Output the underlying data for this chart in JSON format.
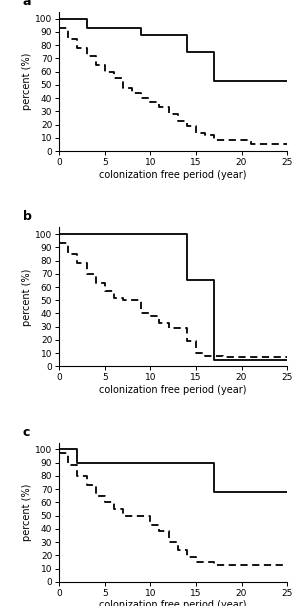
{
  "panels": [
    {
      "label": "a",
      "solid_x": [
        0,
        3,
        3,
        9,
        9,
        14,
        14,
        17,
        17,
        21,
        21,
        25
      ],
      "solid_y": [
        100,
        100,
        93,
        93,
        88,
        88,
        75,
        75,
        53,
        53,
        53,
        53
      ],
      "dashed_x": [
        0,
        1,
        1,
        2,
        2,
        3,
        3,
        4,
        4,
        5,
        5,
        6,
        6,
        7,
        7,
        8,
        8,
        9,
        9,
        10,
        10,
        11,
        11,
        12,
        12,
        13,
        13,
        14,
        14,
        15,
        15,
        16,
        16,
        17,
        17,
        19,
        19,
        21,
        21,
        22,
        22,
        25
      ],
      "dashed_y": [
        93,
        93,
        85,
        85,
        78,
        78,
        72,
        72,
        65,
        65,
        60,
        60,
        55,
        55,
        48,
        48,
        44,
        44,
        40,
        40,
        37,
        37,
        33,
        33,
        28,
        28,
        23,
        23,
        19,
        19,
        14,
        14,
        12,
        12,
        8,
        8,
        8,
        8,
        5,
        5,
        5,
        5
      ]
    },
    {
      "label": "b",
      "solid_x": [
        0,
        14,
        14,
        17,
        17,
        19,
        19,
        25
      ],
      "solid_y": [
        100,
        100,
        65,
        65,
        5,
        5,
        5,
        5
      ],
      "dashed_x": [
        0,
        1,
        1,
        2,
        2,
        3,
        3,
        4,
        4,
        5,
        5,
        6,
        6,
        7,
        7,
        9,
        9,
        10,
        10,
        11,
        11,
        12,
        12,
        13,
        13,
        14,
        14,
        15,
        15,
        16,
        16,
        17,
        17,
        18,
        18,
        19,
        19,
        22,
        22,
        25
      ],
      "dashed_y": [
        93,
        93,
        85,
        85,
        78,
        78,
        70,
        70,
        63,
        63,
        57,
        57,
        52,
        52,
        50,
        50,
        40,
        40,
        38,
        38,
        33,
        33,
        29,
        29,
        29,
        29,
        19,
        19,
        10,
        10,
        8,
        8,
        8,
        8,
        7,
        7,
        7,
        7,
        7,
        7
      ]
    },
    {
      "label": "c",
      "solid_x": [
        0,
        2,
        2,
        17,
        17,
        19,
        19,
        22,
        22,
        25
      ],
      "solid_y": [
        100,
        100,
        90,
        90,
        68,
        68,
        68,
        68,
        68,
        68
      ],
      "dashed_x": [
        0,
        1,
        1,
        2,
        2,
        3,
        3,
        4,
        4,
        5,
        5,
        6,
        6,
        7,
        7,
        8,
        8,
        10,
        10,
        11,
        11,
        12,
        12,
        13,
        13,
        14,
        14,
        15,
        15,
        16,
        16,
        17,
        17,
        19,
        19,
        21,
        21,
        25
      ],
      "dashed_y": [
        97,
        97,
        88,
        88,
        80,
        80,
        73,
        73,
        65,
        65,
        60,
        60,
        55,
        55,
        50,
        50,
        50,
        50,
        43,
        43,
        38,
        38,
        30,
        30,
        24,
        24,
        19,
        19,
        15,
        15,
        15,
        15,
        13,
        13,
        13,
        13,
        13,
        13
      ]
    }
  ],
  "xlim": [
    0,
    25
  ],
  "ylim": [
    0,
    105
  ],
  "xticks": [
    0,
    5,
    10,
    15,
    20,
    25
  ],
  "yticks": [
    0,
    10,
    20,
    30,
    40,
    50,
    60,
    70,
    80,
    90,
    100
  ],
  "xlabel": "colonization free period (year)",
  "ylabel": "percent (%)",
  "line_color": "black",
  "solid_lw": 1.3,
  "dashed_lw": 1.3,
  "dash_pattern": [
    4,
    2.5
  ]
}
